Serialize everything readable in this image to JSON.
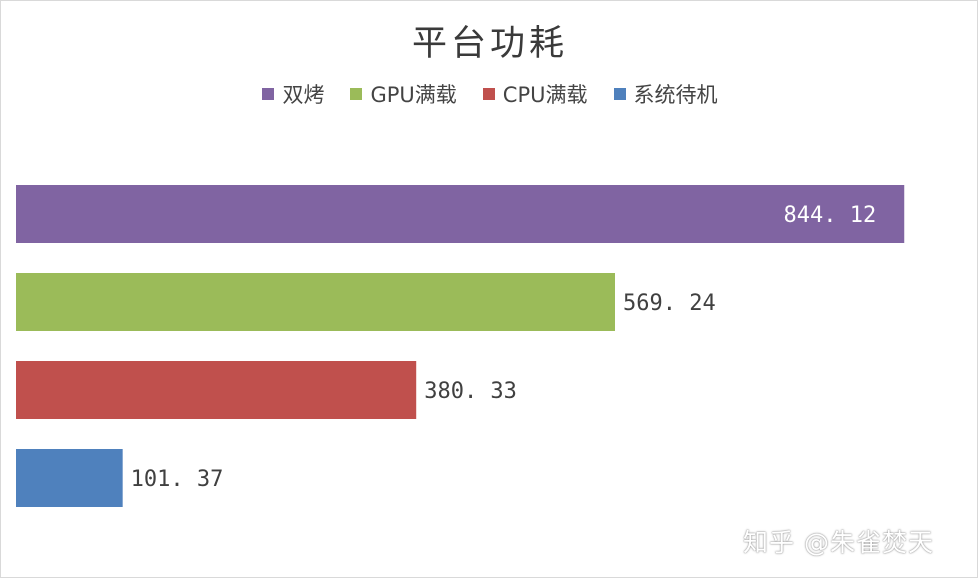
{
  "chart_data": {
    "type": "bar",
    "orientation": "horizontal",
    "title": "平台功耗",
    "categories": [
      "双烤",
      "GPU满载",
      "CPU满载",
      "系统待机"
    ],
    "values": [
      844.12,
      569.24,
      380.33,
      101.37
    ],
    "value_labels": [
      "844. 12",
      "569. 24",
      "380. 33",
      "101. 37"
    ],
    "colors": [
      "#8064a2",
      "#9bbb59",
      "#c0504d",
      "#4f81bd"
    ],
    "xlim": [
      0,
      880
    ],
    "legend": {
      "position": "top",
      "entries": [
        {
          "label": "双烤",
          "color": "#8064a2"
        },
        {
          "label": "GPU满载",
          "color": "#9bbb59"
        },
        {
          "label": "CPU满载",
          "color": "#c0504d"
        },
        {
          "label": "系统待机",
          "color": "#4f81bd"
        }
      ]
    },
    "grid": false,
    "xlabel": "",
    "ylabel": ""
  },
  "watermark": "知乎 @朱雀焚天"
}
